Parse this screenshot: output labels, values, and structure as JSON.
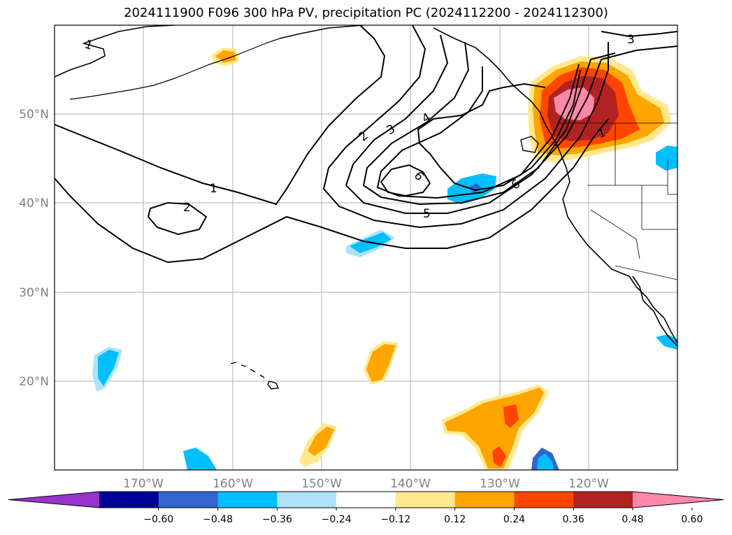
{
  "title": "2024111900 F096 300 hPa PV, precipitation PC (2024112200 - 2024112300)",
  "lat_labels": [
    {
      "value": 50,
      "text": "50°N"
    },
    {
      "value": 40,
      "text": "40°N"
    },
    {
      "value": 30,
      "text": "30°N"
    },
    {
      "value": 20,
      "text": "20°N"
    }
  ],
  "lon_labels": [
    {
      "value": -170,
      "text": "170°W"
    },
    {
      "value": -160,
      "text": "160°W"
    },
    {
      "value": -150,
      "text": "150°W"
    },
    {
      "value": -140,
      "text": "140°W"
    },
    {
      "value": -130,
      "text": "130°W"
    },
    {
      "value": -120,
      "text": "120°W"
    }
  ],
  "colorbar": {
    "colors": [
      "#9933cc",
      "#000099",
      "#3366cc",
      "#00bfff",
      "#aee2fa",
      "#ffffff",
      "#ffe98c",
      "#ffa500",
      "#ff4500",
      "#b22222",
      "#ff88aa"
    ],
    "labels": [
      "−0.60",
      "−0.48",
      "−0.36",
      "−0.24",
      "−0.12",
      "0.12",
      "0.24",
      "0.36",
      "0.48",
      "0.60"
    ]
  },
  "contour_labels": [
    "1",
    "1",
    "2",
    "2",
    "3",
    "3",
    "4",
    "5",
    "6",
    "6",
    "1"
  ],
  "colors": {
    "grid": "#b0b0b0",
    "contour": "#000000"
  }
}
